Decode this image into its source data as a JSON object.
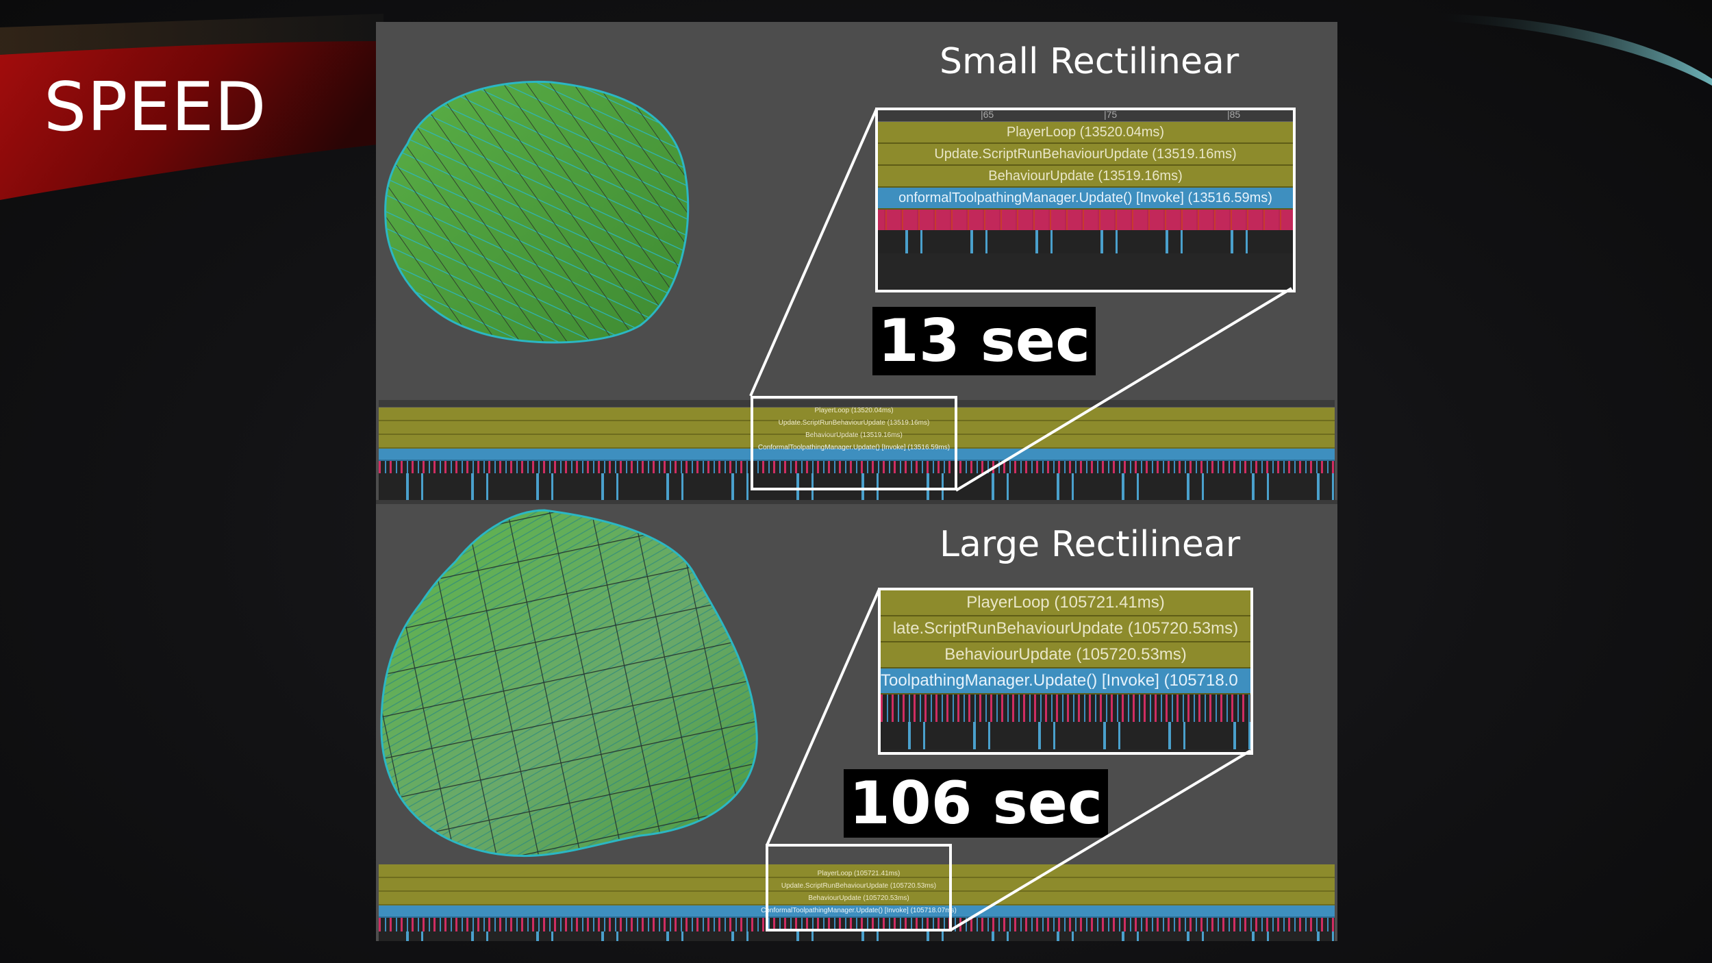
{
  "slide": {
    "title": "SPEED"
  },
  "small": {
    "label": "Small Rectilinear",
    "time": "13 sec",
    "profiler": {
      "ruler_marks": [
        "|65",
        "|75",
        "|85"
      ],
      "player_loop": "PlayerLoop (13520.04ms)",
      "script_run": "Update.ScriptRunBehaviourUpdate (13519.16ms)",
      "behaviour": "BehaviourUpdate (13519.16ms)",
      "manager": "onformalToolpathingManager.Update() [Invoke] (13516.59ms)"
    },
    "mini": {
      "player_loop": "PlayerLoop (13520.04ms)",
      "script_run": "Update.ScriptRunBehaviourUpdate (13519.16ms)",
      "behaviour": "BehaviourUpdate (13519.16ms)",
      "manager": "ConformalToolpathingManager.Update() [Invoke] (13516.59ms)"
    }
  },
  "large": {
    "label": "Large Rectilinear",
    "time": "106 sec",
    "profiler": {
      "player_loop": "PlayerLoop (105721.41ms)",
      "script_run": "late.ScriptRunBehaviourUpdate (105720.53ms)",
      "behaviour": "BehaviourUpdate (105720.53ms)",
      "manager": "ToolpathingManager.Update() [Invoke] (105718.0"
    },
    "mini": {
      "player_loop": "PlayerLoop (105721.41ms)",
      "script_run": "Update.ScriptRunBehaviourUpdate (105720.53ms)",
      "behaviour": "BehaviourUpdate (105720.53ms)",
      "manager": "ConformalToolpathingManager.Update() [Invoke] (105718.07ms)"
    }
  },
  "colors": {
    "olive": "#8d8b2c",
    "blue": "#3e8fbf",
    "crimson": "#c2285a",
    "surface_green": "#58a843",
    "toolpath_cyan": "#2bb7c4"
  }
}
